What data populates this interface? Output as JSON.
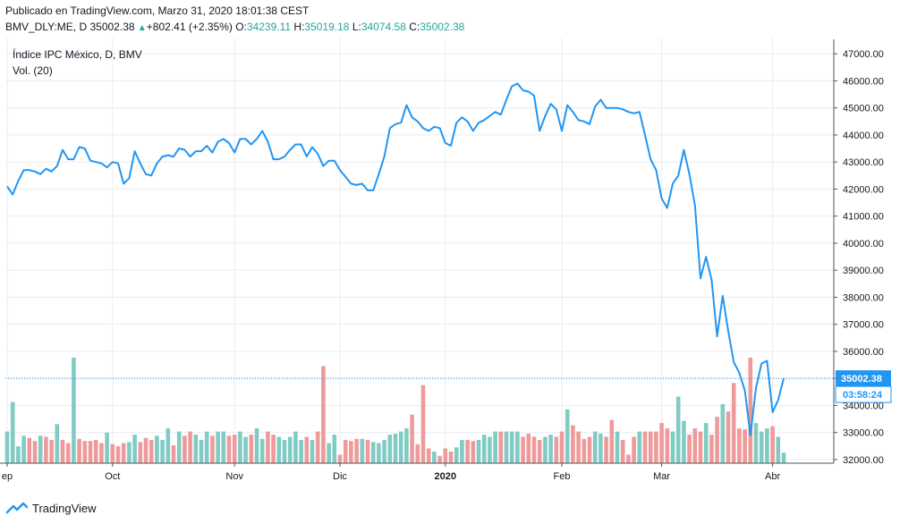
{
  "header": {
    "published": "Publicado en TradingView.com, Marzo 31, 2020 18:01:38 CEST",
    "symbol": "BMV_DLY:ME, D",
    "last": "35002.38",
    "up_arrow": "▲",
    "change": "+802.41 (+2.35%)",
    "open_label": "O:",
    "open": "34239.11",
    "high_label": "H:",
    "high": "35019.18",
    "low_label": "L:",
    "low": "34074.58",
    "close_label": "C:",
    "close": "35002.38"
  },
  "legend": {
    "title": "Índice IPC México, D, BMV",
    "volume": "Vol. (20)"
  },
  "footer": {
    "brand": "TradingView"
  },
  "colors": {
    "line": "#2196f3",
    "vol_up": "#80cbc4",
    "vol_down": "#ef9a9a",
    "price_label_bg": "#2196f3",
    "grid": "#e9ecf2"
  },
  "chart_data": {
    "type": "line",
    "title": "Índice IPC México, D, BMV",
    "ylim": [
      31800,
      47600
    ],
    "y_ticks": [
      "47000.00",
      "46000.00",
      "45000.00",
      "44000.00",
      "43000.00",
      "42000.00",
      "41000.00",
      "40000.00",
      "39000.00",
      "38000.00",
      "37000.00",
      "36000.00",
      "35000.00",
      "34000.00",
      "33000.00",
      "32000.00"
    ],
    "y_tick_values": [
      47000,
      46000,
      45000,
      44000,
      43000,
      42000,
      41000,
      40000,
      39000,
      38000,
      37000,
      36000,
      35000,
      34000,
      33000,
      32000
    ],
    "x_ticks": [
      {
        "label": "ep",
        "index": 0
      },
      {
        "label": "Oct",
        "index": 19
      },
      {
        "label": "Nov",
        "index": 41
      },
      {
        "label": "Dic",
        "index": 60
      },
      {
        "label": "2020",
        "index": 79
      },
      {
        "label": "Feb",
        "index": 100
      },
      {
        "label": "Mar",
        "index": 118
      },
      {
        "label": "Abr",
        "index": 138
      }
    ],
    "last_price_label": "35002.38",
    "countdown_label": "03:58:24",
    "last_price": 35002.38,
    "close": [
      42100,
      41800,
      42300,
      42700,
      42700,
      42650,
      42550,
      42750,
      42650,
      42850,
      43450,
      43100,
      43100,
      43550,
      43500,
      43050,
      43000,
      42950,
      42800,
      43000,
      42950,
      42200,
      42400,
      43400,
      42950,
      42550,
      42500,
      42950,
      43200,
      43250,
      43200,
      43500,
      43450,
      43200,
      43400,
      43400,
      43600,
      43350,
      43750,
      43850,
      43700,
      43350,
      43850,
      43850,
      43650,
      43850,
      44150,
      43750,
      43100,
      43100,
      43200,
      43450,
      43650,
      43650,
      43200,
      43550,
      43300,
      42850,
      43050,
      43050,
      42700,
      42450,
      42200,
      42150,
      42200,
      41950,
      41950,
      42550,
      43200,
      44250,
      44400,
      44450,
      45100,
      44650,
      44500,
      44250,
      44150,
      44300,
      44250,
      43700,
      43600,
      44450,
      44650,
      44500,
      44150,
      44450,
      44550,
      44700,
      44850,
      44750,
      45300,
      45800,
      45900,
      45650,
      45600,
      45450,
      44150,
      44700,
      45150,
      44950,
      44150,
      45100,
      44850,
      44550,
      44500,
      44400,
      45050,
      45300,
      45000,
      45000,
      45000,
      44950,
      44850,
      44800,
      44850,
      44000,
      43100,
      42700,
      41650,
      41300,
      42200,
      42500,
      43450,
      42550,
      41400,
      38700,
      39500,
      38650,
      36550,
      38050,
      36750,
      35600,
      35200,
      34550,
      32900,
      34650,
      35550,
      35650,
      33750,
      34200,
      35000
    ],
    "volume": [
      0.3,
      0.58,
      0.16,
      0.26,
      0.24,
      0.21,
      0.26,
      0.25,
      0.22,
      0.37,
      0.22,
      0.19,
      1.0,
      0.23,
      0.21,
      0.21,
      0.22,
      0.19,
      0.29,
      0.18,
      0.16,
      0.19,
      0.2,
      0.27,
      0.2,
      0.24,
      0.22,
      0.26,
      0.22,
      0.33,
      0.17,
      0.3,
      0.26,
      0.3,
      0.27,
      0.22,
      0.3,
      0.26,
      0.3,
      0.3,
      0.26,
      0.27,
      0.3,
      0.25,
      0.27,
      0.33,
      0.23,
      0.3,
      0.27,
      0.25,
      0.22,
      0.25,
      0.3,
      0.22,
      0.25,
      0.22,
      0.3,
      0.92,
      0.19,
      0.27,
      0.08,
      0.22,
      0.21,
      0.23,
      0.23,
      0.22,
      0.2,
      0.19,
      0.22,
      0.27,
      0.28,
      0.3,
      0.33,
      0.46,
      0.18,
      0.74,
      0.14,
      0.11,
      0.07,
      0.14,
      0.11,
      0.15,
      0.22,
      0.22,
      0.21,
      0.22,
      0.27,
      0.25,
      0.3,
      0.3,
      0.3,
      0.3,
      0.3,
      0.25,
      0.28,
      0.25,
      0.22,
      0.25,
      0.27,
      0.25,
      0.3,
      0.51,
      0.36,
      0.3,
      0.23,
      0.25,
      0.3,
      0.28,
      0.25,
      0.41,
      0.3,
      0.22,
      0.08,
      0.25,
      0.3,
      0.3,
      0.3,
      0.3,
      0.38,
      0.33,
      0.3,
      0.63,
      0.4,
      0.27,
      0.33,
      0.3,
      0.38,
      0.27,
      0.44,
      0.56,
      0.49,
      0.76,
      0.33,
      0.32,
      1.0,
      0.38,
      0.3,
      0.33,
      0.35,
      0.25,
      0.1
    ],
    "volume_up": [
      1,
      1,
      1,
      1,
      0,
      0,
      1,
      0,
      0,
      1,
      0,
      0,
      1,
      0,
      0,
      0,
      0,
      0,
      1,
      0,
      0,
      0,
      1,
      1,
      0,
      0,
      0,
      1,
      1,
      1,
      0,
      1,
      0,
      0,
      1,
      1,
      1,
      0,
      1,
      1,
      0,
      0,
      1,
      1,
      0,
      1,
      1,
      0,
      0,
      1,
      1,
      1,
      1,
      1,
      0,
      1,
      0,
      0,
      1,
      1,
      0,
      0,
      0,
      0,
      1,
      0,
      1,
      1,
      1,
      1,
      1,
      1,
      1,
      0,
      0,
      0,
      0,
      1,
      0,
      0,
      0,
      1,
      1,
      0,
      0,
      1,
      1,
      1,
      1,
      0,
      1,
      1,
      1,
      0,
      0,
      0,
      0,
      1,
      1,
      0,
      0,
      1,
      0,
      0,
      0,
      0,
      1,
      1,
      0,
      0,
      1,
      0,
      0,
      0,
      1,
      0,
      0,
      0,
      0,
      0,
      1,
      1,
      1,
      0,
      0,
      0,
      1,
      0,
      0,
      1,
      0,
      0,
      0,
      0,
      0,
      1,
      1,
      1,
      0,
      1,
      1
    ]
  }
}
